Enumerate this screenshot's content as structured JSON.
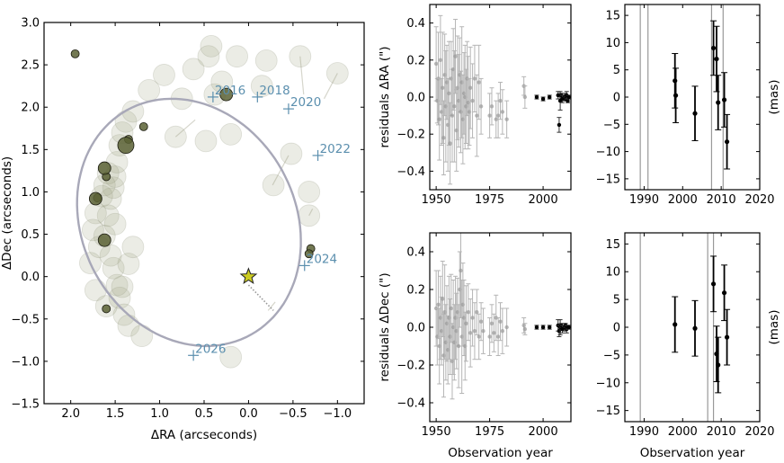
{
  "chart_data": [
    {
      "id": "orbit",
      "type": "scatter",
      "xlabel": "ΔRA (arcseconds)",
      "ylabel": "ΔDec (arcseconds)",
      "xlim": [
        2.3,
        -1.3
      ],
      "ylim": [
        -1.5,
        3.0
      ],
      "xticks": [
        2.0,
        1.5,
        1.0,
        0.5,
        0.0,
        -0.5,
        -1.0
      ],
      "xtick_labels": [
        "2.0",
        "1.5",
        "1.0",
        "0.5",
        "0.0",
        "−0.5",
        "−1.0"
      ],
      "yticks": [
        -1.5,
        -1.0,
        -0.5,
        0.0,
        0.5,
        1.0,
        1.5,
        2.0,
        2.5,
        3.0
      ],
      "ytick_labels": [
        "−1.5",
        "−1.0",
        "−0.5",
        "0.0",
        "0.5",
        "1.0",
        "1.5",
        "2.0",
        "2.5",
        "3.0"
      ],
      "colors": {
        "orbit": "#a8a8b8",
        "epoch": "#5b8fae",
        "star": "#cccc22",
        "faint": "#a3a88a",
        "dark": "#5a6235"
      },
      "star": {
        "x": 0.0,
        "y": 0.0
      },
      "ellipse": {
        "cx": 0.67,
        "cy": 0.64,
        "a": 1.21,
        "b": 1.5,
        "angle_deg": -23
      },
      "epoch_labels": [
        {
          "label": "2016",
          "x": 0.4,
          "y": 2.12
        },
        {
          "label": "2018",
          "x": -0.1,
          "y": 2.12
        },
        {
          "label": "2020",
          "x": -0.45,
          "y": 1.98
        },
        {
          "label": "2022",
          "x": -0.78,
          "y": 1.43
        },
        {
          "label": "2024",
          "x": -0.63,
          "y": 0.13
        },
        {
          "label": "2026",
          "x": 0.62,
          "y": -0.93
        }
      ],
      "faint_points": [
        [
          1.78,
          0.16
        ],
        [
          1.72,
          -0.16
        ],
        [
          1.68,
          0.35
        ],
        [
          1.62,
          0.48
        ],
        [
          1.58,
          0.72
        ],
        [
          1.55,
          0.92
        ],
        [
          1.52,
          1.05
        ],
        [
          1.5,
          1.18
        ],
        [
          1.48,
          1.35
        ],
        [
          1.45,
          1.55
        ],
        [
          1.42,
          1.7
        ],
        [
          1.38,
          1.83
        ],
        [
          1.3,
          1.95
        ],
        [
          1.52,
          0.1
        ],
        [
          1.48,
          -0.1
        ],
        [
          1.45,
          -0.25
        ],
        [
          1.4,
          -0.45
        ],
        [
          1.35,
          -0.58
        ],
        [
          1.2,
          -0.7
        ],
        [
          1.65,
          0.95
        ],
        [
          1.72,
          0.75
        ],
        [
          1.55,
          0.25
        ],
        [
          1.35,
          0.15
        ],
        [
          1.6,
          -0.35
        ],
        [
          1.75,
          0.55
        ],
        [
          1.58,
          1.22
        ],
        [
          1.3,
          0.35
        ],
        [
          1.5,
          0.62
        ],
        [
          1.62,
          1.08
        ],
        [
          1.42,
          -0.12
        ],
        [
          1.12,
          2.2
        ],
        [
          0.95,
          2.38
        ],
        [
          0.62,
          2.45
        ],
        [
          0.45,
          2.6
        ],
        [
          0.42,
          2.72
        ],
        [
          0.13,
          2.6
        ],
        [
          -0.2,
          2.55
        ],
        [
          -0.58,
          2.6
        ],
        [
          -1.0,
          2.4
        ],
        [
          -0.15,
          2.25
        ],
        [
          0.38,
          2.15
        ],
        [
          0.82,
          1.65
        ],
        [
          0.48,
          1.6
        ],
        [
          0.2,
          1.68
        ],
        [
          -0.48,
          1.45
        ],
        [
          -0.28,
          1.08
        ],
        [
          -0.68,
          1.0
        ],
        [
          -0.68,
          0.72
        ],
        [
          0.3,
          2.3
        ],
        [
          0.75,
          2.1
        ],
        [
          0.2,
          -0.95
        ]
      ],
      "dark_points": [
        {
          "x": 1.18,
          "y": 1.77,
          "size": "small"
        },
        {
          "x": 1.35,
          "y": 1.62,
          "size": "small"
        },
        {
          "x": 1.38,
          "y": 1.55,
          "size": "large"
        },
        {
          "x": 1.6,
          "y": 1.18,
          "size": "small"
        },
        {
          "x": 1.62,
          "y": 1.28,
          "size": "medium"
        },
        {
          "x": 1.7,
          "y": 0.93,
          "size": "small"
        },
        {
          "x": 1.72,
          "y": 0.92,
          "size": "medium"
        },
        {
          "x": 1.62,
          "y": 0.43,
          "size": "medium"
        },
        {
          "x": 1.6,
          "y": -0.38,
          "size": "small"
        },
        {
          "x": 1.95,
          "y": 2.63,
          "size": "small"
        },
        {
          "x": -0.7,
          "y": 0.33,
          "size": "small"
        },
        {
          "x": -0.68,
          "y": 0.27,
          "size": "small"
        },
        {
          "x": 0.25,
          "y": 2.15,
          "size": "medium"
        }
      ],
      "track_lines": [
        [
          [
            -0.22,
            -0.4
          ],
          [
            -0.3,
            -0.3
          ]
        ],
        [
          [
            -0.27,
            1.08
          ],
          [
            -0.45,
            1.43
          ]
        ],
        [
          [
            -0.68,
            0.72
          ],
          [
            -0.72,
            0.8
          ]
        ],
        [
          [
            0.82,
            1.65
          ],
          [
            0.6,
            1.85
          ]
        ],
        [
          [
            -0.58,
            2.6
          ],
          [
            -0.62,
            2.15
          ]
        ],
        [
          [
            -1.0,
            2.4
          ],
          [
            -0.85,
            2.1
          ]
        ]
      ]
    },
    {
      "id": "ra-long",
      "type": "scatter",
      "ylabel": "residuals ΔRA (\")",
      "xlim": [
        1947,
        2013
      ],
      "ylim": [
        -0.5,
        0.5
      ],
      "xticks": [
        1950,
        1975,
        2000
      ],
      "yticks": [
        -0.4,
        -0.2,
        0.0,
        0.2,
        0.4
      ],
      "ytick_labels": [
        "−0.4",
        "−0.2",
        "0.0",
        "0.2",
        "0.4"
      ],
      "points": [
        [
          1950,
          0.18,
          0.2
        ],
        [
          1950.5,
          -0.02,
          0.12
        ],
        [
          1951,
          0.1,
          0.25
        ],
        [
          1951.5,
          -0.12,
          0.22
        ],
        [
          1952,
          0.2,
          0.24
        ],
        [
          1952.5,
          -0.08,
          0.18
        ],
        [
          1953,
          0.05,
          0.3
        ],
        [
          1953.5,
          -0.22,
          0.2
        ],
        [
          1954,
          0.12,
          0.22
        ],
        [
          1954.5,
          -0.05,
          0.3
        ],
        [
          1955,
          0.08,
          0.2
        ],
        [
          1955.5,
          -0.15,
          0.25
        ],
        [
          1956,
          0.02,
          0.28
        ],
        [
          1956.5,
          -0.25,
          0.22
        ],
        [
          1957,
          0.1,
          0.2
        ],
        [
          1957.5,
          -0.1,
          0.25
        ],
        [
          1958,
          0.15,
          0.22
        ],
        [
          1958.5,
          -0.05,
          0.3
        ],
        [
          1959,
          0.22,
          0.2
        ],
        [
          1959.5,
          -0.18,
          0.22
        ],
        [
          1960,
          0.05,
          0.28
        ],
        [
          1960.5,
          -0.02,
          0.25
        ],
        [
          1961,
          0.12,
          0.2
        ],
        [
          1961.5,
          -0.08,
          0.22
        ],
        [
          1962,
          0.08,
          0.3
        ],
        [
          1962.5,
          -0.12,
          0.24
        ],
        [
          1963,
          0.02,
          0.22
        ],
        [
          1963.5,
          0.0,
          0.28
        ],
        [
          1964,
          -0.05,
          0.2
        ],
        [
          1964.5,
          0.1,
          0.2
        ],
        [
          1965,
          -0.03,
          0.25
        ],
        [
          1965.5,
          -0.08,
          0.18
        ],
        [
          1966,
          0.05,
          0.22
        ],
        [
          1967,
          -0.02,
          0.2
        ],
        [
          1968,
          0.1,
          0.18
        ],
        [
          1969,
          -0.1,
          0.22
        ],
        [
          1970,
          0.08,
          0.2
        ],
        [
          1971,
          -0.05,
          0.15
        ],
        [
          1975,
          -0.1,
          0.12
        ],
        [
          1976,
          -0.05,
          0.1
        ],
        [
          1978,
          -0.12,
          0.1
        ],
        [
          1979,
          -0.1,
          0.12
        ],
        [
          1980,
          -0.02,
          0.1
        ],
        [
          1981,
          -0.08,
          0.12
        ],
        [
          1983,
          -0.12,
          0.1
        ],
        [
          1991,
          0.06,
          0.05
        ],
        [
          1991.5,
          0.0,
          0.06
        ],
        [
          1997,
          0.0,
          0.01
        ],
        [
          2000,
          -0.01,
          0.01
        ],
        [
          2003,
          0.0,
          0.01
        ],
        [
          2007,
          0.01,
          0.02
        ],
        [
          2007.5,
          -0.15,
          0.04
        ],
        [
          2008,
          -0.02,
          0.05
        ],
        [
          2008.5,
          0.01,
          0.01
        ],
        [
          2009,
          -0.01,
          0.02
        ],
        [
          2010,
          0.0,
          0.02
        ],
        [
          2010.5,
          -0.01,
          0.01
        ],
        [
          2011,
          0.01,
          0.02
        ],
        [
          2011.5,
          -0.02,
          0.01
        ],
        [
          2012,
          0.0,
          0.01
        ]
      ]
    },
    {
      "id": "ra-zoom",
      "type": "scatter",
      "ylabel": "(mas)",
      "xlim": [
        1985,
        2020
      ],
      "ylim": [
        -17,
        17
      ],
      "xticks": [
        1990,
        2000,
        2010,
        2020
      ],
      "yticks": [
        -15,
        -10,
        -5,
        0,
        5,
        10,
        15
      ],
      "ytick_labels": [
        "−15",
        "−10",
        "−5",
        "0",
        "5",
        "10",
        "15"
      ],
      "vlines": [
        1989,
        1991,
        2007.5,
        2010.5
      ],
      "points": [
        [
          1998,
          3.0,
          5.0
        ],
        [
          1998.2,
          0.3,
          5.0
        ],
        [
          2003.2,
          -3.0,
          5.0
        ],
        [
          2008,
          9.0,
          5.0
        ],
        [
          2008.8,
          7.0,
          6.0
        ],
        [
          2009.2,
          -1.0,
          5.0
        ],
        [
          2010.8,
          -0.5,
          5.0
        ],
        [
          2011.5,
          -8.2,
          5.0
        ]
      ]
    },
    {
      "id": "dec-long",
      "type": "scatter",
      "ylabel": "residuals ΔDec (\")",
      "xlabel": "Observation year",
      "xlim": [
        1947,
        2013
      ],
      "ylim": [
        -0.5,
        0.5
      ],
      "xticks": [
        1950,
        1975,
        2000
      ],
      "yticks": [
        -0.4,
        -0.2,
        0.0,
        0.2,
        0.4
      ],
      "ytick_labels": [
        "−0.4",
        "−0.2",
        "0.0",
        "0.2",
        "0.4"
      ],
      "points": [
        [
          1950,
          0.1,
          0.2
        ],
        [
          1950.5,
          -0.05,
          0.15
        ],
        [
          1951,
          0.12,
          0.18
        ],
        [
          1951.5,
          -0.1,
          0.2
        ],
        [
          1952,
          0.05,
          0.22
        ],
        [
          1952.5,
          -0.02,
          0.18
        ],
        [
          1953,
          0.15,
          0.2
        ],
        [
          1953.5,
          -0.15,
          0.22
        ],
        [
          1954,
          0.08,
          0.25
        ],
        [
          1954.5,
          -0.08,
          0.2
        ],
        [
          1955,
          0.02,
          0.2
        ],
        [
          1955.5,
          -0.12,
          0.18
        ],
        [
          1956,
          0.05,
          0.22
        ],
        [
          1956.5,
          -0.05,
          0.2
        ],
        [
          1957,
          0.1,
          0.18
        ],
        [
          1957.5,
          -0.18,
          0.2
        ],
        [
          1958,
          0.0,
          0.25
        ],
        [
          1958.5,
          -0.08,
          0.2
        ],
        [
          1959,
          0.05,
          0.22
        ],
        [
          1959.5,
          -0.02,
          0.2
        ],
        [
          1960,
          0.08,
          0.18
        ],
        [
          1960.5,
          -0.1,
          0.22
        ],
        [
          1961,
          0.2,
          0.2
        ],
        [
          1961.5,
          0.3,
          0.25
        ],
        [
          1962,
          -0.05,
          0.3
        ],
        [
          1962.5,
          0.12,
          0.22
        ],
        [
          1963,
          0.05,
          0.2
        ],
        [
          1963.5,
          -0.1,
          0.18
        ],
        [
          1964,
          0.02,
          0.2
        ],
        [
          1965,
          0.08,
          0.15
        ],
        [
          1966,
          -0.03,
          0.18
        ],
        [
          1967,
          0.05,
          0.15
        ],
        [
          1968,
          -0.02,
          0.15
        ],
        [
          1969,
          0.08,
          0.12
        ],
        [
          1970,
          -0.05,
          0.12
        ],
        [
          1971,
          0.03,
          0.1
        ],
        [
          1972,
          -0.02,
          0.12
        ],
        [
          1975,
          -0.05,
          0.1
        ],
        [
          1976,
          0.02,
          0.1
        ],
        [
          1977,
          -0.03,
          0.1
        ],
        [
          1978,
          0.05,
          0.12
        ],
        [
          1979,
          -0.05,
          0.1
        ],
        [
          1980,
          0.03,
          0.1
        ],
        [
          1981,
          -0.02,
          0.12
        ],
        [
          1983,
          0.0,
          0.1
        ],
        [
          1991,
          0.01,
          0.04
        ],
        [
          1991.5,
          -0.01,
          0.03
        ],
        [
          1997,
          0.0,
          0.01
        ],
        [
          2000,
          0.0,
          0.01
        ],
        [
          2003,
          0.0,
          0.01
        ],
        [
          2007,
          0.01,
          0.03
        ],
        [
          2007.5,
          -0.02,
          0.03
        ],
        [
          2008,
          0.0,
          0.04
        ],
        [
          2008.5,
          0.01,
          0.01
        ],
        [
          2009,
          -0.01,
          0.02
        ],
        [
          2010,
          0.0,
          0.02
        ],
        [
          2010.5,
          0.01,
          0.01
        ],
        [
          2011,
          -0.01,
          0.02
        ],
        [
          2011.5,
          0.0,
          0.01
        ],
        [
          2012,
          0.0,
          0.01
        ]
      ]
    },
    {
      "id": "dec-zoom",
      "type": "scatter",
      "ylabel": "(mas)",
      "xlabel": "Observation year",
      "xlim": [
        1985,
        2020
      ],
      "ylim": [
        -17,
        17
      ],
      "xticks": [
        1990,
        2000,
        2010,
        2020
      ],
      "yticks": [
        -15,
        -10,
        -5,
        0,
        5,
        10,
        15
      ],
      "ytick_labels": [
        "−15",
        "−10",
        "−5",
        "0",
        "5",
        "10",
        "15"
      ],
      "vlines": [
        1989,
        2006.5,
        2008
      ],
      "points": [
        [
          1998,
          0.5,
          5.0
        ],
        [
          2003.2,
          -0.2,
          5.0
        ],
        [
          2008,
          7.8,
          5.0
        ],
        [
          2008.8,
          -4.8,
          5.0
        ],
        [
          2009.2,
          -6.8,
          5.0
        ],
        [
          2010.8,
          6.2,
          5.0
        ],
        [
          2011.5,
          -1.8,
          5.0
        ]
      ]
    }
  ]
}
